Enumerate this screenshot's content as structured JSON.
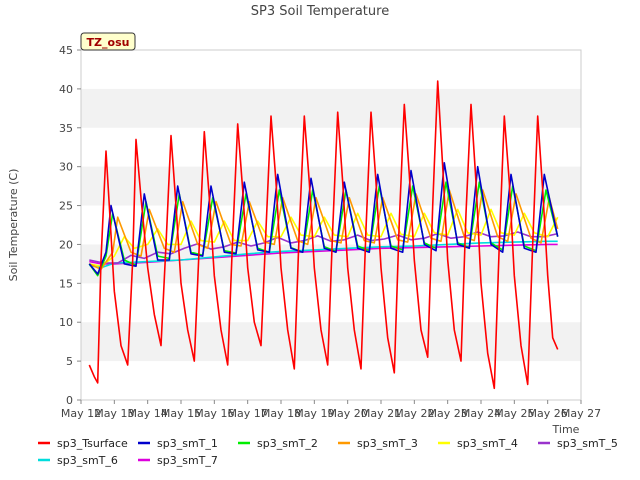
{
  "chart_data": {
    "type": "line",
    "title": "SP3 Soil Temperature",
    "xlabel": "Time",
    "ylabel": "Soil Temperature (C)",
    "ylim": [
      0,
      45
    ],
    "xlim": [
      12,
      27
    ],
    "yticks": [
      0,
      5,
      10,
      15,
      20,
      25,
      30,
      35,
      40,
      45
    ],
    "xticks": [
      {
        "v": 12,
        "label": "May 12"
      },
      {
        "v": 13,
        "label": "May 13"
      },
      {
        "v": 14,
        "label": "May 14"
      },
      {
        "v": 15,
        "label": "May 15"
      },
      {
        "v": 16,
        "label": "May 16"
      },
      {
        "v": 17,
        "label": "May 17"
      },
      {
        "v": 18,
        "label": "May 18"
      },
      {
        "v": 19,
        "label": "May 19"
      },
      {
        "v": 20,
        "label": "May 20"
      },
      {
        "v": 21,
        "label": "May 21"
      },
      {
        "v": 22,
        "label": "May 22"
      },
      {
        "v": 23,
        "label": "May 23"
      },
      {
        "v": 24,
        "label": "May 24"
      },
      {
        "v": 25,
        "label": "May 25"
      },
      {
        "v": 26,
        "label": "May 26"
      },
      {
        "v": 27,
        "label": "May 27"
      }
    ],
    "annotation": "TZ_osu",
    "grid": "horizontal bands",
    "legend_position": "bottom",
    "series": [
      {
        "name": "sp3_Tsurface",
        "color": "#ff0000",
        "x": [
          12.25,
          12.4,
          12.5,
          12.6,
          12.75,
          12.85,
          13.0,
          13.2,
          13.4,
          13.55,
          13.65,
          13.8,
          14.0,
          14.2,
          14.4,
          14.55,
          14.7,
          14.85,
          15.0,
          15.2,
          15.4,
          15.55,
          15.7,
          15.85,
          16.0,
          16.2,
          16.4,
          16.55,
          16.7,
          16.85,
          17.0,
          17.2,
          17.4,
          17.55,
          17.7,
          17.85,
          18.0,
          18.2,
          18.4,
          18.55,
          18.7,
          18.85,
          19.0,
          19.2,
          19.4,
          19.55,
          19.7,
          19.85,
          20.0,
          20.2,
          20.4,
          20.55,
          20.7,
          20.85,
          21.0,
          21.2,
          21.4,
          21.55,
          21.7,
          21.85,
          22.0,
          22.2,
          22.4,
          22.55,
          22.7,
          22.85,
          23.0,
          23.2,
          23.4,
          23.55,
          23.7,
          23.85,
          24.0,
          24.2,
          24.4,
          24.55,
          24.7,
          24.85,
          25.0,
          25.2,
          25.4,
          25.55,
          25.7,
          25.85,
          26.0,
          26.15,
          26.3
        ],
        "y": [
          4.5,
          3.0,
          2.2,
          18.0,
          32.0,
          25.0,
          14.0,
          7.0,
          4.5,
          18.0,
          33.5,
          26.0,
          17.0,
          11.0,
          7.0,
          20.0,
          34.0,
          25.0,
          15.0,
          9.0,
          5.0,
          20.0,
          34.5,
          26.0,
          16.0,
          9.0,
          4.5,
          21.0,
          35.5,
          27.0,
          17.0,
          10.0,
          7.0,
          22.0,
          36.5,
          28.0,
          17.0,
          9.0,
          4.0,
          22.0,
          36.5,
          28.0,
          17.0,
          9.0,
          4.5,
          22.0,
          37.0,
          28.0,
          17.0,
          9.0,
          4.0,
          22.0,
          37.0,
          28.0,
          17.0,
          8.0,
          3.5,
          23.0,
          38.0,
          29.0,
          18.0,
          9.0,
          5.5,
          25.0,
          41.0,
          30.0,
          18.0,
          9.0,
          5.0,
          24.0,
          38.0,
          28.0,
          15.0,
          6.0,
          1.5,
          20.0,
          36.5,
          28.0,
          16.0,
          7.0,
          2.0,
          20.0,
          36.5,
          27.0,
          16.0,
          8.0,
          6.5
        ]
      },
      {
        "name": "sp3_smT_1",
        "color": "#0000cc",
        "x": [
          12.25,
          12.5,
          12.75,
          12.9,
          13.3,
          13.65,
          13.9,
          14.3,
          14.65,
          14.9,
          15.3,
          15.65,
          15.9,
          16.3,
          16.65,
          16.9,
          17.3,
          17.65,
          17.9,
          18.3,
          18.65,
          18.9,
          19.3,
          19.65,
          19.9,
          20.3,
          20.65,
          20.9,
          21.3,
          21.65,
          21.9,
          22.3,
          22.65,
          22.9,
          23.3,
          23.65,
          23.9,
          24.3,
          24.65,
          24.9,
          25.3,
          25.65,
          25.9,
          26.3
        ],
        "y": [
          17.5,
          16.2,
          19.0,
          25.0,
          17.5,
          17.2,
          26.5,
          18.0,
          18.0,
          27.5,
          18.8,
          18.5,
          27.5,
          19.0,
          18.8,
          28.0,
          19.3,
          19.0,
          29.0,
          19.5,
          19.0,
          28.5,
          19.5,
          19.0,
          28.0,
          19.5,
          19.0,
          29.0,
          19.5,
          19.0,
          29.5,
          20.0,
          19.2,
          30.5,
          20.0,
          19.5,
          30.0,
          20.0,
          19.0,
          29.0,
          19.5,
          19.0,
          29.0,
          21.0
        ]
      },
      {
        "name": "sp3_smT_2",
        "color": "#00ee00",
        "x": [
          12.25,
          12.5,
          12.75,
          12.95,
          13.3,
          13.65,
          13.95,
          14.3,
          14.65,
          14.95,
          15.3,
          15.65,
          15.95,
          16.3,
          16.65,
          16.95,
          17.3,
          17.65,
          17.95,
          18.3,
          18.65,
          18.95,
          19.3,
          19.65,
          19.95,
          20.3,
          20.65,
          20.95,
          21.3,
          21.65,
          21.95,
          22.3,
          22.65,
          22.95,
          23.3,
          23.65,
          23.95,
          24.3,
          24.65,
          24.95,
          25.3,
          25.65,
          25.95,
          26.3
        ],
        "y": [
          17.5,
          16.0,
          18.5,
          24.0,
          18.0,
          17.3,
          25.5,
          18.5,
          18.2,
          26.5,
          19.0,
          18.6,
          26.0,
          19.2,
          18.9,
          26.5,
          19.5,
          19.0,
          27.0,
          19.6,
          19.0,
          27.0,
          19.7,
          19.1,
          27.0,
          19.8,
          19.2,
          27.5,
          19.8,
          19.3,
          27.5,
          20.2,
          19.5,
          28.0,
          20.2,
          19.6,
          28.0,
          20.2,
          19.3,
          27.5,
          19.8,
          19.2,
          27.0,
          21.0
        ]
      },
      {
        "name": "sp3_smT_3",
        "color": "#ff9900",
        "x": [
          12.25,
          12.6,
          12.95,
          13.1,
          13.5,
          13.8,
          14.05,
          14.5,
          14.8,
          15.05,
          15.5,
          15.8,
          16.05,
          16.5,
          16.8,
          17.05,
          17.5,
          17.8,
          18.05,
          18.5,
          18.8,
          19.05,
          19.5,
          19.8,
          20.05,
          20.5,
          20.8,
          21.05,
          21.5,
          21.8,
          22.05,
          22.5,
          22.8,
          23.05,
          23.5,
          23.8,
          24.05,
          24.5,
          24.8,
          25.05,
          25.5,
          25.8,
          26.05,
          26.3
        ],
        "y": [
          17.5,
          16.8,
          19.0,
          23.5,
          19.0,
          18.5,
          24.5,
          19.5,
          19.0,
          25.5,
          20.0,
          19.5,
          25.5,
          20.0,
          19.8,
          25.5,
          20.3,
          20.0,
          26.0,
          20.5,
          20.0,
          26.0,
          20.5,
          20.2,
          26.0,
          20.5,
          20.2,
          26.0,
          20.6,
          20.3,
          26.5,
          20.8,
          20.4,
          27.0,
          21.0,
          20.5,
          27.0,
          21.0,
          20.4,
          26.5,
          20.8,
          20.2,
          26.0,
          22.0
        ]
      },
      {
        "name": "sp3_smT_4",
        "color": "#ffff00",
        "x": [
          12.25,
          12.6,
          13.0,
          13.3,
          13.6,
          14.0,
          14.3,
          14.6,
          15.0,
          15.3,
          15.6,
          16.0,
          16.3,
          16.6,
          17.0,
          17.3,
          17.6,
          18.0,
          18.3,
          18.6,
          19.0,
          19.3,
          19.6,
          20.0,
          20.3,
          20.6,
          21.0,
          21.3,
          21.6,
          22.0,
          22.3,
          22.6,
          23.0,
          23.3,
          23.6,
          24.0,
          24.3,
          24.6,
          25.0,
          25.3,
          25.6,
          26.0,
          26.3
        ],
        "y": [
          17.5,
          17.2,
          18.5,
          21.0,
          19.5,
          20.0,
          22.0,
          20.0,
          20.0,
          23.0,
          20.5,
          20.3,
          23.0,
          20.5,
          20.5,
          23.0,
          21.0,
          21.0,
          23.5,
          21.2,
          21.0,
          23.5,
          21.2,
          21.0,
          24.0,
          21.2,
          21.0,
          24.0,
          21.3,
          21.0,
          24.0,
          21.5,
          21.2,
          24.5,
          21.5,
          21.2,
          24.5,
          21.5,
          21.2,
          24.0,
          21.5,
          21.0,
          23.5
        ]
      },
      {
        "name": "sp3_smT_5",
        "color": "#9933cc",
        "x": [
          12.25,
          12.7,
          13.1,
          13.5,
          13.9,
          14.3,
          14.7,
          15.1,
          15.5,
          15.9,
          16.3,
          16.7,
          17.1,
          17.5,
          17.9,
          18.3,
          18.7,
          19.1,
          19.5,
          19.9,
          20.3,
          20.7,
          21.1,
          21.5,
          21.9,
          22.3,
          22.7,
          23.1,
          23.5,
          23.9,
          24.3,
          24.7,
          25.1,
          25.5,
          25.9,
          26.3
        ],
        "y": [
          18.0,
          17.6,
          17.6,
          18.6,
          18.2,
          19.0,
          18.8,
          19.5,
          20.1,
          19.4,
          19.7,
          20.3,
          19.8,
          20.2,
          20.9,
          20.2,
          20.5,
          21.1,
          20.4,
          20.6,
          21.2,
          20.5,
          20.7,
          21.2,
          20.6,
          20.8,
          21.4,
          20.8,
          21.0,
          21.6,
          21.0,
          21.1,
          21.6,
          21.0,
          21.0,
          21.4
        ]
      },
      {
        "name": "sp3_smT_6",
        "color": "#00dddd",
        "x": [
          12.25,
          12.6,
          13.0,
          14.0,
          15.0,
          16.0,
          17.0,
          18.0,
          19.0,
          20.0,
          21.0,
          22.0,
          23.0,
          24.0,
          25.0,
          26.0,
          26.3
        ],
        "y": [
          17.3,
          17.0,
          17.6,
          17.8,
          18.0,
          18.4,
          18.8,
          19.1,
          19.3,
          19.5,
          19.7,
          19.8,
          20.0,
          20.2,
          20.3,
          20.4,
          20.4
        ]
      },
      {
        "name": "sp3_smT_7",
        "color": "#dd00dd",
        "x": [
          12.25,
          12.6,
          13.0,
          14.0,
          15.0,
          16.0,
          17.0,
          18.0,
          19.0,
          20.0,
          21.0,
          22.0,
          23.0,
          24.0,
          25.0,
          26.0,
          26.3
        ],
        "y": [
          17.8,
          17.5,
          17.5,
          17.7,
          18.0,
          18.3,
          18.6,
          18.9,
          19.1,
          19.3,
          19.5,
          19.6,
          19.7,
          19.8,
          19.9,
          20.0,
          20.0
        ]
      }
    ]
  }
}
